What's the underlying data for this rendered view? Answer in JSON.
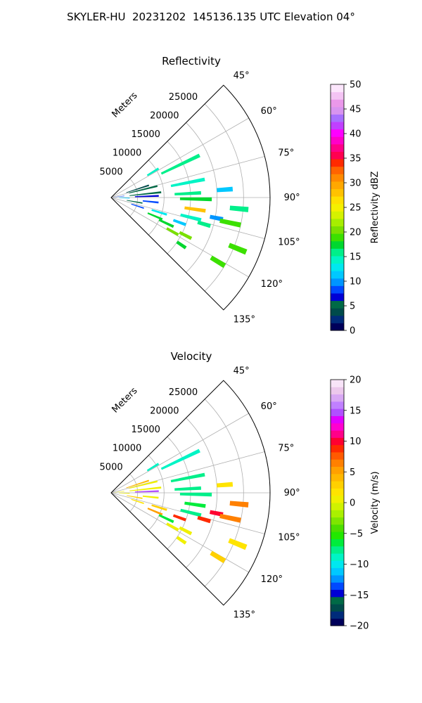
{
  "title": "SKYLER-HU  20231202  145136.135 UTC Elevation 04°",
  "range_unit_label": "Meters",
  "chart_data": [
    {
      "type": "heatmap",
      "projection": "polar-sector",
      "title": "Reflectivity",
      "azimuth_range_deg": [
        45,
        135
      ],
      "azimuth_ticks": [
        45,
        60,
        75,
        90,
        105,
        120,
        135
      ],
      "azimuth_tick_labels": [
        "45°",
        "60°",
        "75°",
        "90°",
        "105°",
        "120°",
        "135°"
      ],
      "range_max_m": 30000,
      "range_ticks": [
        5000,
        10000,
        15000,
        20000,
        25000
      ],
      "range_tick_labels": [
        "5000",
        "10000",
        "15000",
        "20000",
        "25000"
      ],
      "grid": true,
      "colorbar": {
        "label": "Reflectivity dBZ",
        "min": 0,
        "max": 50,
        "ticks": [
          0,
          5,
          10,
          15,
          20,
          25,
          30,
          35,
          40,
          45,
          50
        ],
        "tick_labels": [
          "0",
          "5",
          "10",
          "15",
          "20",
          "25",
          "30",
          "35",
          "40",
          "45",
          "50"
        ],
        "colors": [
          "#00005a",
          "#002b7a",
          "#004b4b",
          "#006a46",
          "#0000d5",
          "#0049ff",
          "#0095ff",
          "#00c8ff",
          "#00e8ef",
          "#00f4c5",
          "#00ef8a",
          "#00d72f",
          "#3ce000",
          "#7ae000",
          "#a7ee00",
          "#d5f200",
          "#f5f000",
          "#ffe000",
          "#ffc200",
          "#ffa800",
          "#ff8a00",
          "#ff6400",
          "#ff2a00",
          "#ff0050",
          "#ff0088",
          "#ff00c8",
          "#ff00ff",
          "#c040ff",
          "#a870ff",
          "#d894f0",
          "#ea98ea",
          "#f4c4f4",
          "#fce6fc"
        ]
      },
      "echoes": [
        {
          "az": 58.5,
          "r0": 8000,
          "r1": 10500,
          "value": 14
        },
        {
          "az": 64.5,
          "r0": 10500,
          "r1": 18500,
          "value": 16
        },
        {
          "az": 72,
          "r0": 3000,
          "r1": 7500,
          "value": 4
        },
        {
          "az": 76,
          "r0": 3500,
          "r1": 9000,
          "value": 6
        },
        {
          "az": 79,
          "r0": 11500,
          "r1": 18000,
          "value": 15
        },
        {
          "az": 83,
          "r0": 500,
          "r1": 2500,
          "value": 8
        },
        {
          "az": 84,
          "r0": 3500,
          "r1": 9500,
          "value": 5
        },
        {
          "az": 86,
          "r0": 20000,
          "r1": 23000,
          "value": 12
        },
        {
          "az": 87,
          "r0": 12000,
          "r1": 17000,
          "value": 16
        },
        {
          "az": 88,
          "r0": 4500,
          "r1": 9000,
          "value": 7
        },
        {
          "az": 91,
          "r0": 13000,
          "r1": 19000,
          "value": 18
        },
        {
          "az": 92,
          "r0": 1500,
          "r1": 3500,
          "value": 11
        },
        {
          "az": 95,
          "r0": 22500,
          "r1": 26000,
          "value": 16
        },
        {
          "az": 96,
          "r0": 6000,
          "r1": 9000,
          "value": 9
        },
        {
          "az": 98,
          "r0": 14000,
          "r1": 18000,
          "value": 28
        },
        {
          "az": 100,
          "r0": 3000,
          "r1": 6000,
          "value": 6
        },
        {
          "az": 101,
          "r0": 19000,
          "r1": 21500,
          "value": 10
        },
        {
          "az": 102,
          "r0": 21000,
          "r1": 25000,
          "value": 19
        },
        {
          "az": 104,
          "r0": 13500,
          "r1": 17500,
          "value": 15
        },
        {
          "az": 106,
          "r0": 17000,
          "r1": 19500,
          "value": 16
        },
        {
          "az": 107,
          "r0": 8000,
          "r1": 11000,
          "value": 13
        },
        {
          "az": 108,
          "r0": 4000,
          "r1": 6500,
          "value": 8
        },
        {
          "az": 110,
          "r0": 12500,
          "r1": 15000,
          "value": 11
        },
        {
          "az": 112,
          "r0": 24000,
          "r1": 27500,
          "value": 19
        },
        {
          "az": 113,
          "r0": 7500,
          "r1": 10500,
          "value": 17
        },
        {
          "az": 115,
          "r0": 10000,
          "r1": 13000,
          "value": 18
        },
        {
          "az": 117,
          "r0": 14500,
          "r1": 17000,
          "value": 20
        },
        {
          "az": 119,
          "r0": 12000,
          "r1": 14500,
          "value": 21
        },
        {
          "az": 121,
          "r0": 22000,
          "r1": 25000,
          "value": 19
        },
        {
          "az": 124,
          "r0": 15000,
          "r1": 17000,
          "value": 18
        }
      ]
    },
    {
      "type": "heatmap",
      "projection": "polar-sector",
      "title": "Velocity",
      "azimuth_range_deg": [
        45,
        135
      ],
      "azimuth_ticks": [
        45,
        60,
        75,
        90,
        105,
        120,
        135
      ],
      "azimuth_tick_labels": [
        "45°",
        "60°",
        "75°",
        "90°",
        "105°",
        "120°",
        "135°"
      ],
      "range_max_m": 30000,
      "range_ticks": [
        5000,
        10000,
        15000,
        20000,
        25000
      ],
      "range_tick_labels": [
        "5000",
        "10000",
        "15000",
        "20000",
        "25000"
      ],
      "grid": true,
      "colorbar": {
        "label": "Velocity (m/s)",
        "min": -20,
        "max": 20,
        "ticks": [
          -20,
          -15,
          -10,
          -5,
          0,
          5,
          10,
          15,
          20
        ],
        "tick_labels": [
          "−20",
          "−15",
          "−10",
          "−5",
          "0",
          "5",
          "10",
          "15",
          "20"
        ],
        "colors": [
          "#00005a",
          "#002b7a",
          "#004b4b",
          "#006a46",
          "#0000d5",
          "#0049ff",
          "#0095ff",
          "#00c8ff",
          "#00e8ef",
          "#00f4c5",
          "#00ef8a",
          "#00ec3c",
          "#22e800",
          "#4cde00",
          "#7ee600",
          "#aaf000",
          "#d0f200",
          "#f0f000",
          "#ffe400",
          "#ffd000",
          "#ffb800",
          "#ffa000",
          "#ff8000",
          "#ff5a00",
          "#ff2a00",
          "#ff0030",
          "#ff0088",
          "#ff00d0",
          "#e000ff",
          "#b050ff",
          "#c080ff",
          "#d8a8f4",
          "#ecc8ec",
          "#f8e4f8"
        ]
      },
      "echoes": [
        {
          "az": 58.5,
          "r0": 8000,
          "r1": 10500,
          "value": -9
        },
        {
          "az": 64.5,
          "r0": 10500,
          "r1": 18500,
          "value": -9
        },
        {
          "az": 72,
          "r0": 3000,
          "r1": 7500,
          "value": 4
        },
        {
          "az": 76,
          "r0": 3500,
          "r1": 9000,
          "value": 1
        },
        {
          "az": 79,
          "r0": 11500,
          "r1": 18000,
          "value": -8
        },
        {
          "az": 83,
          "r0": 500,
          "r1": 2500,
          "value": 1
        },
        {
          "az": 84,
          "r0": 3500,
          "r1": 9500,
          "value": 0
        },
        {
          "az": 86,
          "r0": 20000,
          "r1": 23000,
          "value": 2
        },
        {
          "az": 87,
          "r0": 12000,
          "r1": 17000,
          "value": -8
        },
        {
          "az": 88,
          "r0": 4500,
          "r1": 9000,
          "value": 15
        },
        {
          "az": 91,
          "r0": 13000,
          "r1": 19000,
          "value": -8
        },
        {
          "az": 92,
          "r0": 1500,
          "r1": 3500,
          "value": 1
        },
        {
          "az": 95,
          "r0": 22500,
          "r1": 26000,
          "value": 6
        },
        {
          "az": 96,
          "r0": 6000,
          "r1": 9000,
          "value": 1
        },
        {
          "az": 98,
          "r0": 14000,
          "r1": 18000,
          "value": -7
        },
        {
          "az": 100,
          "r0": 3000,
          "r1": 6000,
          "value": 3
        },
        {
          "az": 101,
          "r0": 19000,
          "r1": 21500,
          "value": 10
        },
        {
          "az": 102,
          "r0": 21000,
          "r1": 25000,
          "value": 7
        },
        {
          "az": 104,
          "r0": 13500,
          "r1": 17500,
          "value": -8
        },
        {
          "az": 106,
          "r0": 17000,
          "r1": 19500,
          "value": 9
        },
        {
          "az": 107,
          "r0": 8000,
          "r1": 11000,
          "value": 3
        },
        {
          "az": 108,
          "r0": 4000,
          "r1": 6500,
          "value": 2
        },
        {
          "az": 110,
          "r0": 12500,
          "r1": 15000,
          "value": 9
        },
        {
          "az": 112,
          "r0": 24000,
          "r1": 27500,
          "value": 2
        },
        {
          "az": 113,
          "r0": 7500,
          "r1": 10500,
          "value": 5
        },
        {
          "az": 115,
          "r0": 10000,
          "r1": 13000,
          "value": -7
        },
        {
          "az": 117,
          "r0": 14500,
          "r1": 17000,
          "value": 1
        },
        {
          "az": 119,
          "r0": 12000,
          "r1": 14500,
          "value": 0
        },
        {
          "az": 121,
          "r0": 22000,
          "r1": 25000,
          "value": 3
        },
        {
          "az": 124,
          "r0": 15000,
          "r1": 17000,
          "value": 1
        }
      ]
    }
  ]
}
